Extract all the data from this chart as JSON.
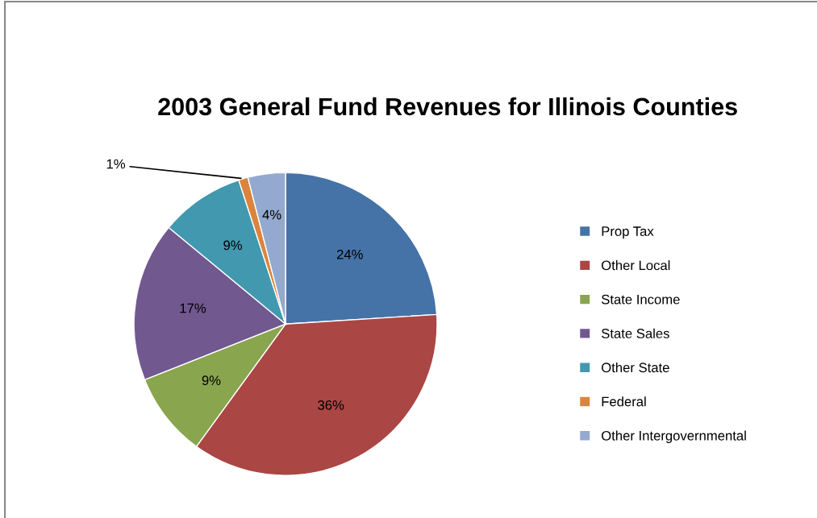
{
  "chart_data": {
    "type": "pie",
    "title": "2003 General Fund Revenues for Illinois Counties",
    "categories": [
      "Prop Tax",
      "Other Local",
      "State Income",
      "State Sales",
      "Other State",
      "Federal",
      "Other Intergovernmental"
    ],
    "values": [
      24,
      36,
      9,
      17,
      9,
      1,
      4
    ],
    "colors": [
      "#4573a7",
      "#aa4644",
      "#89a54e",
      "#71588f",
      "#4198af",
      "#db843d",
      "#93a9cf"
    ],
    "value_labels": [
      "24%",
      "36%",
      "9%",
      "17%",
      "9%",
      "1%",
      "4%"
    ],
    "legend": "right"
  }
}
